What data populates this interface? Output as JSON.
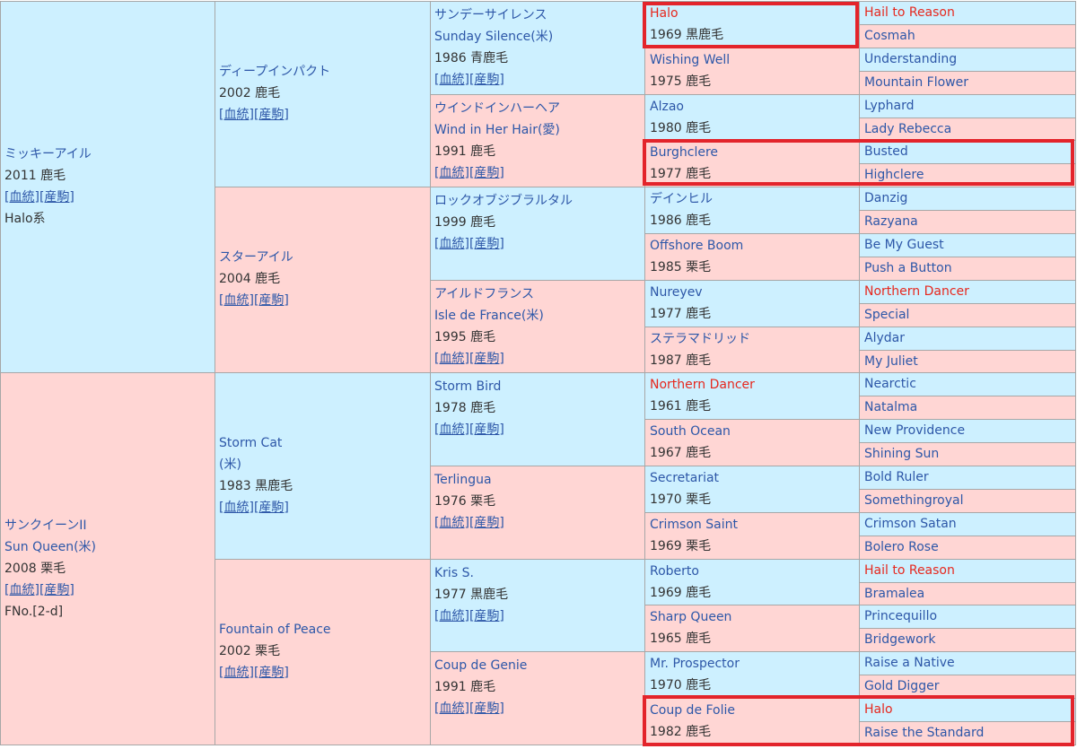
{
  "pedigree": {
    "link_labels": [
      "[血統]",
      "[産駒]"
    ],
    "gen1": [
      {
        "name": "ミッキーアイル",
        "year_color": "2011 鹿毛",
        "line": "Halo系",
        "sex": "male"
      },
      {
        "name": "サンクイーンII",
        "alt_name": "Sun Queen(米)",
        "year_color": "2008 栗毛",
        "family": "FNo.[2-d]",
        "sex": "female"
      }
    ],
    "gen2": [
      {
        "name": "ディープインパクト",
        "year_color": "2002 鹿毛",
        "sex": "male"
      },
      {
        "name": "スターアイル",
        "year_color": "2004 鹿毛",
        "sex": "female"
      },
      {
        "name": "Storm Cat",
        "alt_name": "(米)",
        "year_color": "1983 黒鹿毛",
        "sex": "male"
      },
      {
        "name": "Fountain of Peace",
        "year_color": "2002 栗毛",
        "sex": "female"
      }
    ],
    "gen3": [
      {
        "name": "サンデーサイレンス",
        "alt_name": "Sunday Silence(米)",
        "year_color": "1986 青鹿毛",
        "sex": "male"
      },
      {
        "name": "ウインドインハーヘア",
        "alt_name": "Wind in Her Hair(愛)",
        "year_color": "1991 鹿毛",
        "sex": "female"
      },
      {
        "name": "ロックオブジブラルタル",
        "year_color": "1999 鹿毛",
        "sex": "male"
      },
      {
        "name": "アイルドフランス",
        "alt_name": "Isle de France(米)",
        "year_color": "1995 鹿毛",
        "sex": "female"
      },
      {
        "name": "Storm Bird",
        "year_color": "1978 鹿毛",
        "sex": "male"
      },
      {
        "name": "Terlingua",
        "year_color": "1976 栗毛",
        "sex": "female"
      },
      {
        "name": "Kris S.",
        "year_color": "1977 黒鹿毛",
        "sex": "male"
      },
      {
        "name": "Coup de Genie",
        "year_color": "1991 鹿毛",
        "sex": "female"
      }
    ],
    "gen4": [
      {
        "name": "Halo",
        "year_color": "1969 黒鹿毛",
        "sex": "male",
        "red": true
      },
      {
        "name": "Wishing Well",
        "year_color": "1975 鹿毛",
        "sex": "female"
      },
      {
        "name": "Alzao",
        "year_color": "1980 鹿毛",
        "sex": "male"
      },
      {
        "name": "Burghclere",
        "year_color": "1977 鹿毛",
        "sex": "female"
      },
      {
        "name": "デインヒル",
        "year_color": "1986 鹿毛",
        "sex": "male"
      },
      {
        "name": "Offshore Boom",
        "year_color": "1985 栗毛",
        "sex": "female"
      },
      {
        "name": "Nureyev",
        "year_color": "1977 鹿毛",
        "sex": "male"
      },
      {
        "name": "ステラマドリッド",
        "year_color": "1987 鹿毛",
        "sex": "female"
      },
      {
        "name": "Northern Dancer",
        "year_color": "1961 鹿毛",
        "sex": "male",
        "red": true
      },
      {
        "name": "South Ocean",
        "year_color": "1967 鹿毛",
        "sex": "female"
      },
      {
        "name": "Secretariat",
        "year_color": "1970 栗毛",
        "sex": "male"
      },
      {
        "name": "Crimson Saint",
        "year_color": "1969 栗毛",
        "sex": "female"
      },
      {
        "name": "Roberto",
        "year_color": "1969 鹿毛",
        "sex": "male"
      },
      {
        "name": "Sharp Queen",
        "year_color": "1965 鹿毛",
        "sex": "female"
      },
      {
        "name": "Mr. Prospector",
        "year_color": "1970 鹿毛",
        "sex": "male"
      },
      {
        "name": "Coup de Folie",
        "year_color": "1982 鹿毛",
        "sex": "female"
      }
    ],
    "gen5": [
      {
        "name": "Hail to Reason",
        "sex": "male",
        "red": true
      },
      {
        "name": "Cosmah",
        "sex": "female"
      },
      {
        "name": "Understanding",
        "sex": "male"
      },
      {
        "name": "Mountain Flower",
        "sex": "female"
      },
      {
        "name": "Lyphard",
        "sex": "male"
      },
      {
        "name": "Lady Rebecca",
        "sex": "female"
      },
      {
        "name": "Busted",
        "sex": "male"
      },
      {
        "name": "Highclere",
        "sex": "female"
      },
      {
        "name": "Danzig",
        "sex": "male"
      },
      {
        "name": "Razyana",
        "sex": "female"
      },
      {
        "name": "Be My Guest",
        "sex": "male"
      },
      {
        "name": "Push a Button",
        "sex": "female"
      },
      {
        "name": "Northern Dancer",
        "sex": "male",
        "red": true
      },
      {
        "name": "Special",
        "sex": "female"
      },
      {
        "name": "Alydar",
        "sex": "male"
      },
      {
        "name": "My Juliet",
        "sex": "female"
      },
      {
        "name": "Nearctic",
        "sex": "male"
      },
      {
        "name": "Natalma",
        "sex": "female"
      },
      {
        "name": "New Providence",
        "sex": "male"
      },
      {
        "name": "Shining Sun",
        "sex": "female"
      },
      {
        "name": "Bold Ruler",
        "sex": "male"
      },
      {
        "name": "Somethingroyal",
        "sex": "female"
      },
      {
        "name": "Crimson Satan",
        "sex": "male"
      },
      {
        "name": "Bolero Rose",
        "sex": "female"
      },
      {
        "name": "Hail to Reason",
        "sex": "male",
        "red": true
      },
      {
        "name": "Bramalea",
        "sex": "female"
      },
      {
        "name": "Princequillo",
        "sex": "male"
      },
      {
        "name": "Bridgework",
        "sex": "female"
      },
      {
        "name": "Raise a Native",
        "sex": "male"
      },
      {
        "name": "Gold Digger",
        "sex": "female"
      },
      {
        "name": "Halo",
        "sex": "male",
        "red": true
      },
      {
        "name": "Raise the Standard",
        "sex": "female"
      }
    ],
    "highlight_color": "#e3242b",
    "male_color": "#cdf0ff",
    "female_color": "#ffd6d4",
    "name_color": "#2d57a8",
    "red_name_color": "#e6281e"
  }
}
